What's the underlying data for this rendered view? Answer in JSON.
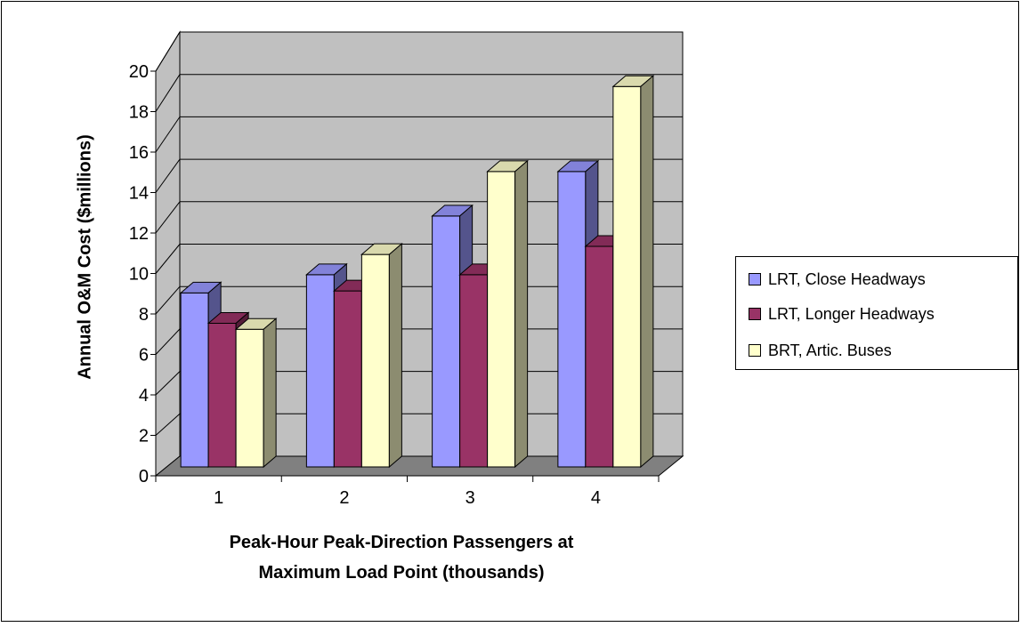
{
  "chart_data": {
    "type": "bar",
    "title": "",
    "xlabel_lines": [
      "Peak-Hour Peak-Direction Passengers at",
      "Maximum Load Point (thousands)"
    ],
    "ylabel": "Annual O&M Cost ($millions)",
    "categories": [
      "1",
      "2",
      "3",
      "4"
    ],
    "ylim": [
      0,
      20
    ],
    "yticks": [
      0,
      2,
      4,
      6,
      8,
      10,
      12,
      14,
      16,
      18,
      20
    ],
    "grid": true,
    "style_3d": true,
    "legend_position": "right",
    "series": [
      {
        "name": "LRT, Close Headways",
        "values": [
          8.6,
          9.5,
          12.4,
          14.6
        ],
        "color": "#9999ff"
      },
      {
        "name": "LRT, Longer Headways",
        "values": [
          7.1,
          8.7,
          9.5,
          10.9
        ],
        "color": "#993366"
      },
      {
        "name": "BRT, Artic. Buses",
        "values": [
          6.8,
          10.5,
          14.6,
          18.8
        ],
        "color": "#ffffcc"
      }
    ]
  }
}
